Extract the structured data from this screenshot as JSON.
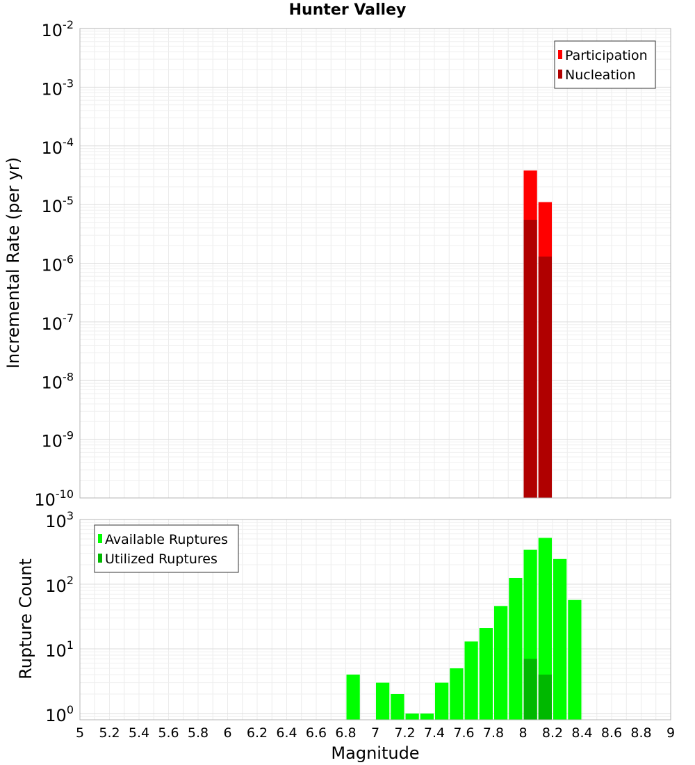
{
  "chart_data": [
    {
      "type": "bar",
      "title": "Hunter Valley",
      "ylabel": "Incremental Rate (per yr)",
      "yscale": "log",
      "ylim": [
        1e-10,
        0.01
      ],
      "xlim": [
        5,
        9
      ],
      "bin_width": 0.1,
      "legend_position": "top-right",
      "series": [
        {
          "name": "Participation",
          "color": "#ff0000",
          "x": [
            8.05,
            8.15
          ],
          "values": [
            3.8e-05,
            1.1e-05
          ]
        },
        {
          "name": "Nucleation",
          "color": "#b00000",
          "x": [
            8.05,
            8.15
          ],
          "values": [
            5.5e-06,
            1.3e-06
          ]
        }
      ]
    },
    {
      "type": "bar",
      "xlabel": "Magnitude",
      "ylabel": "Rupture Count",
      "yscale": "log",
      "ylim": [
        0.8,
        1000
      ],
      "xlim": [
        5,
        9
      ],
      "bin_width": 0.1,
      "legend_position": "top-left",
      "series": [
        {
          "name": "Available Ruptures",
          "color": "#00ff00",
          "x": [
            6.85,
            7.05,
            7.15,
            7.25,
            7.35,
            7.45,
            7.55,
            7.65,
            7.75,
            7.85,
            7.95,
            8.05,
            8.15,
            8.25,
            8.35
          ],
          "values": [
            4,
            3,
            2,
            1,
            1,
            3,
            5,
            13,
            21,
            46,
            125,
            340,
            520,
            245,
            57
          ]
        },
        {
          "name": "Utilized Ruptures",
          "color": "#00b800",
          "x": [
            8.05,
            8.15
          ],
          "values": [
            7,
            4
          ]
        }
      ]
    }
  ],
  "x_ticks": [
    "5",
    "5.2",
    "5.4",
    "5.6",
    "5.8",
    "6",
    "6.2",
    "6.4",
    "6.6",
    "6.8",
    "7",
    "7.2",
    "7.4",
    "7.6",
    "7.8",
    "8",
    "8.2",
    "8.4",
    "8.6",
    "8.8",
    "9"
  ],
  "top_y_ticks": [
    "-10",
    "-9",
    "-8",
    "-7",
    "-6",
    "-5",
    "-4",
    "-3",
    "-2"
  ],
  "bottom_y_ticks": [
    "0",
    "1",
    "2",
    "3"
  ],
  "tick_base": "10"
}
